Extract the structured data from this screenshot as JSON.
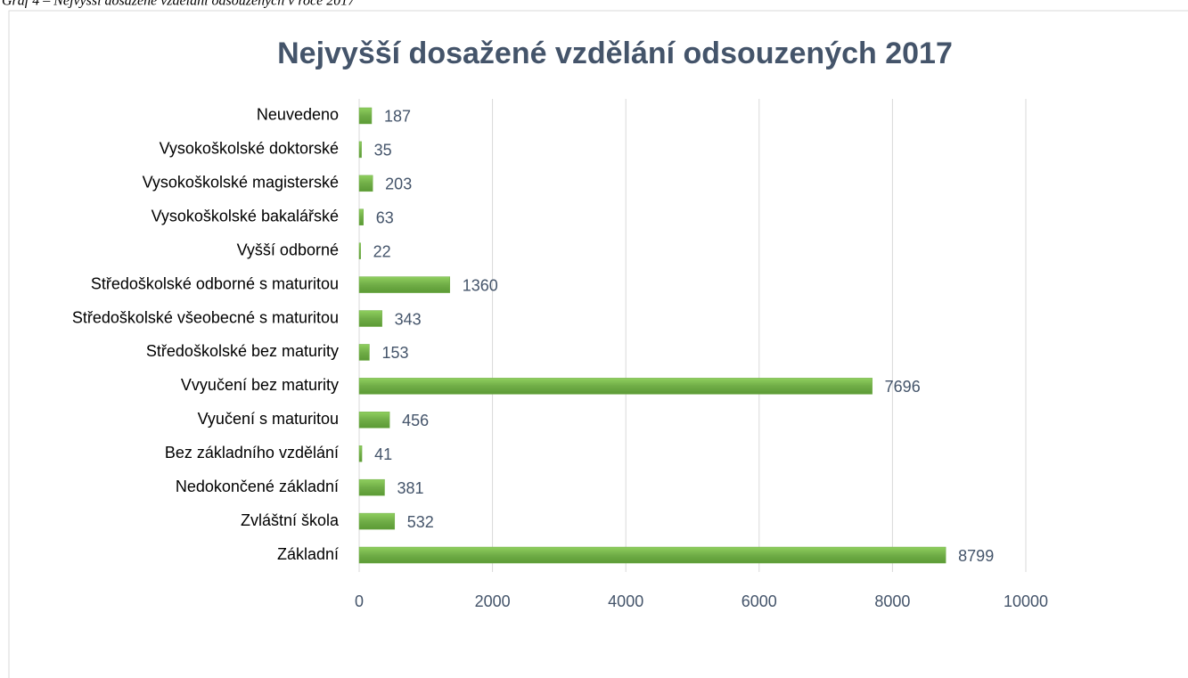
{
  "caption": "Graf 4 – Nejvyšší dosažené vzdělání odsouzených v roce 2017",
  "chart_data": {
    "type": "barh",
    "title": "Nejvyšší dosažené vzdělání odsouzených 2017",
    "categories": [
      "Neuvedeno",
      "Vysokoškolské doktorské",
      "Vysokoškolské magisterské",
      "Vysokoškolské bakalářské",
      "Vyšší odborné",
      "Středoškolské odborné s maturitou",
      "Středoškolské všeobecné s maturitou",
      "Středoškolské bez maturity",
      "Vvyučení bez maturity",
      "Vyučení s maturitou",
      "Bez základního vzdělání",
      "Nedokončené základní",
      "Zvláštní škola",
      "Základní"
    ],
    "values": [
      187,
      35,
      203,
      63,
      22,
      1360,
      343,
      153,
      7696,
      456,
      41,
      381,
      532,
      8799
    ],
    "color": "#70ad47",
    "xlim": [
      0,
      10000
    ],
    "xticks": [
      0,
      2000,
      4000,
      6000,
      8000,
      10000
    ],
    "grid": true
  }
}
